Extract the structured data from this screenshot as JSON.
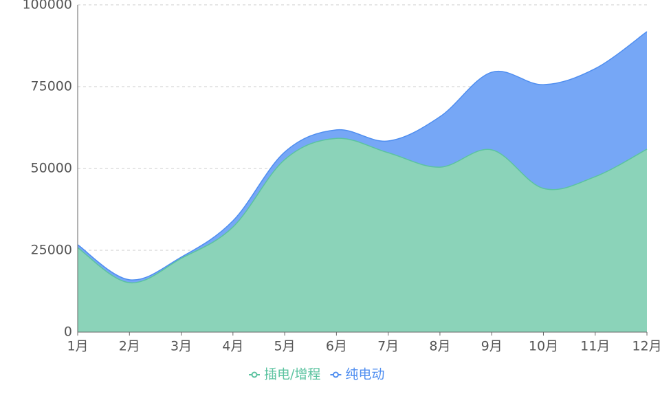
{
  "chart_data": {
    "type": "stacked_area",
    "categories": [
      "1月",
      "2月",
      "3月",
      "4月",
      "5月",
      "6月",
      "7月",
      "8月",
      "9月",
      "10月",
      "11月",
      "12月"
    ],
    "series": [
      {
        "name": "插电/增程",
        "color": "#5cc3a0",
        "fill": "#8bd3b9",
        "values": [
          25800,
          15100,
          22500,
          32100,
          52700,
          59200,
          54800,
          50400,
          55700,
          43900,
          47500,
          55900
        ]
      },
      {
        "name": "纯电动",
        "color": "#4f8ef0",
        "fill": "#76a7f6",
        "values": [
          900,
          900,
          400,
          1900,
          2300,
          2600,
          3600,
          15400,
          23700,
          31700,
          33000,
          35900
        ]
      }
    ],
    "ylim": [
      0,
      100000
    ],
    "yticks": [
      0,
      25000,
      50000,
      75000,
      100000
    ],
    "grid": true,
    "legend": "bottom"
  }
}
